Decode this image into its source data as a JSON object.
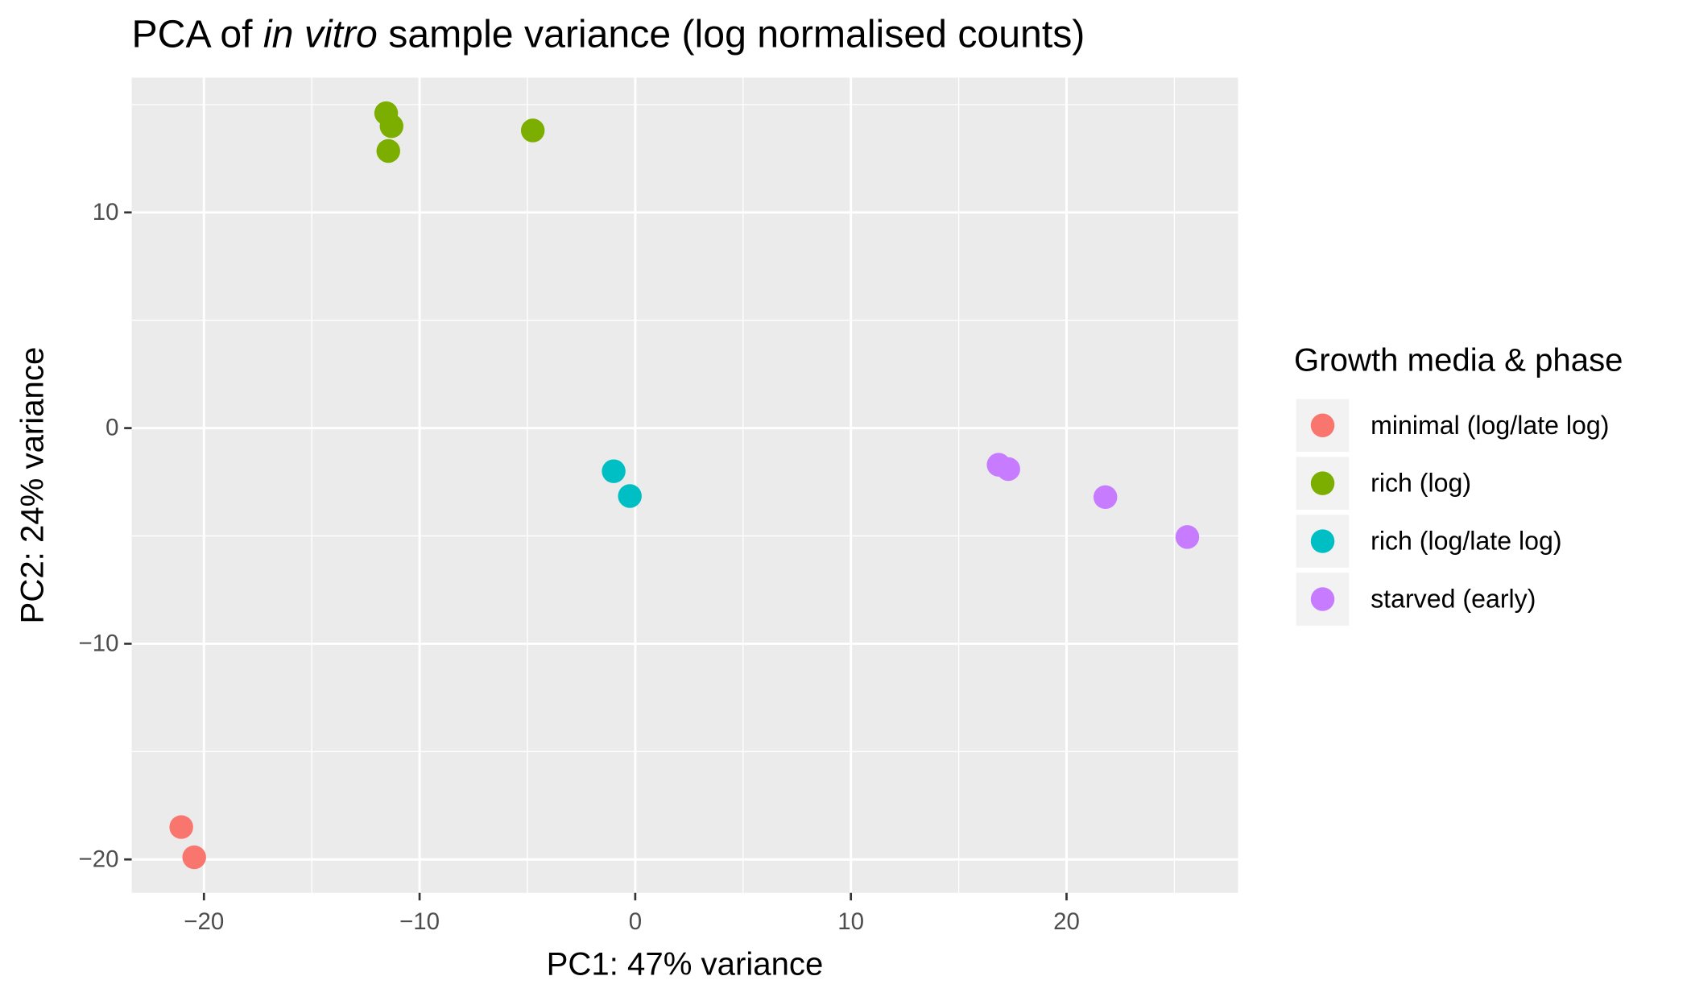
{
  "chart_data": {
    "type": "scatter",
    "title": [
      "PCA of",
      "in vitro",
      "sample variance (log normalised counts)"
    ],
    "x_label": "PC1: 47% variance",
    "y_label": "PC2: 24% variance",
    "legend_title": "Growth media & phase",
    "legend_position": "right",
    "grid": true,
    "xlim": [
      -23.35,
      27.95
    ],
    "ylim": [
      -21.55,
      16.25
    ],
    "xticks": [
      {
        "value": -20,
        "label": "−20"
      },
      {
        "value": -10,
        "label": "−10"
      },
      0,
      10,
      20
    ],
    "yticks": [
      {
        "value": -20,
        "label": "−20"
      },
      {
        "value": -10,
        "label": "−10"
      },
      0,
      10
    ],
    "xminor": [
      -15,
      -5,
      5,
      15,
      25
    ],
    "yminor": [
      -15,
      -5,
      5,
      15
    ],
    "series": [
      {
        "name": "minimal (log/late log)",
        "color": "#F8766D",
        "x": [
          -21.05,
          -20.45
        ],
        "values": [
          -18.5,
          -19.9
        ]
      },
      {
        "name": "rich (log)",
        "color": "#7CAE00",
        "x": [
          -11.55,
          -11.3,
          -11.45,
          -4.75
        ],
        "values": [
          14.6,
          14.0,
          12.85,
          13.8
        ]
      },
      {
        "name": "rich (log/late log)",
        "color": "#00BFC4",
        "x": [
          -1.0,
          -0.25
        ],
        "values": [
          -2.0,
          -3.15
        ]
      },
      {
        "name": "starved (early)",
        "color": "#C77CFF",
        "x": [
          16.85,
          17.3,
          21.8,
          25.6
        ],
        "values": [
          -1.7,
          -1.9,
          -3.2,
          -5.05
        ]
      }
    ]
  }
}
